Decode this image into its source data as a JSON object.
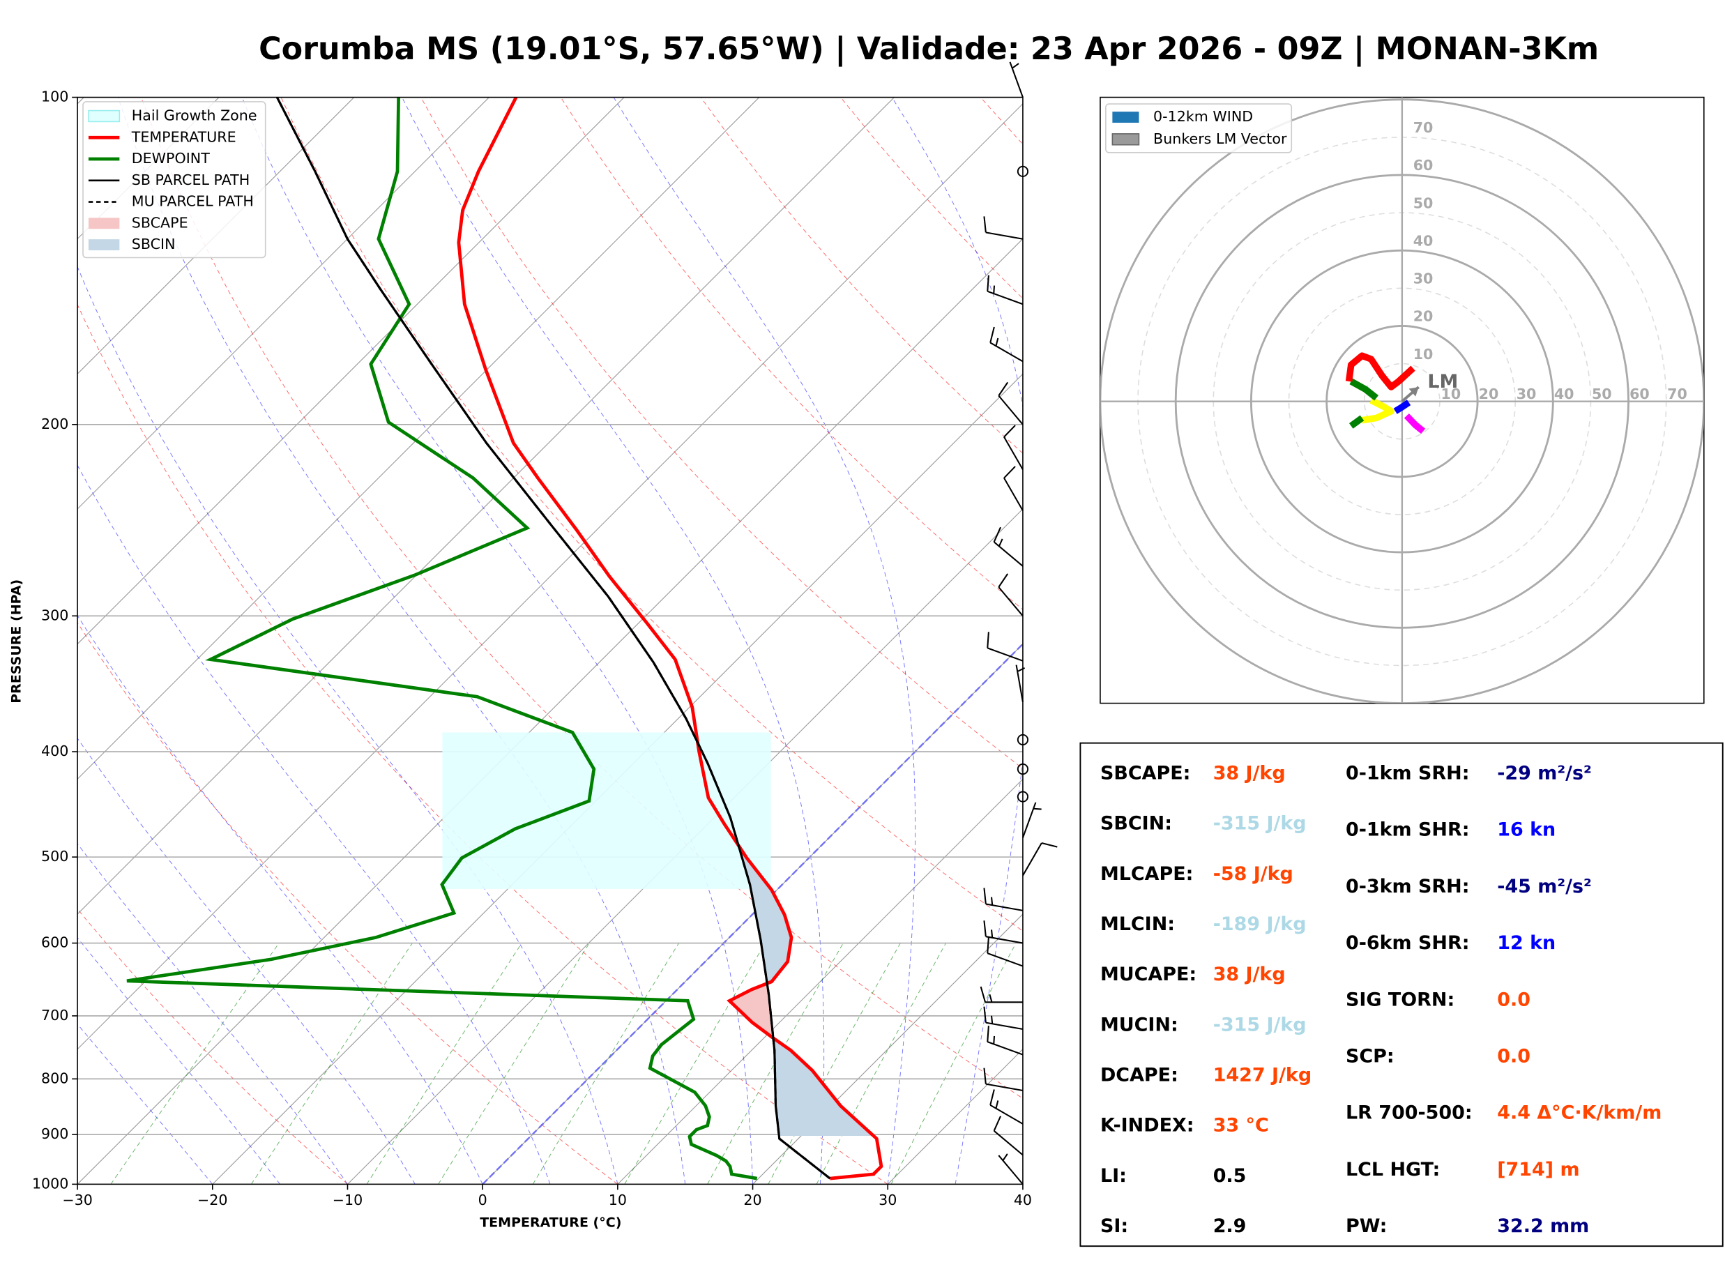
{
  "chart_data": {
    "type": "skewt",
    "title": "Corumba MS (19.01°S, 57.65°W) | Validade: 23 Apr 2026 - 09Z | MONAN-3Km",
    "xlabel": "TEMPERATURE (°C)",
    "ylabel": "PRESSURE (HPA)",
    "xlim": [
      -30,
      40
    ],
    "ylim": [
      1000,
      100
    ],
    "yscale": "log",
    "skew": 45,
    "grid": true,
    "xticks": [
      {
        "value": -30,
        "label": "−30"
      },
      {
        "value": -20,
        "label": "−20"
      },
      {
        "value": -10,
        "label": "−10"
      },
      0,
      10,
      20,
      30,
      40
    ],
    "yticks": [
      100,
      200,
      300,
      400,
      500,
      600,
      700,
      800,
      900,
      1000
    ],
    "legend": "upper left",
    "series": [
      {
        "name": "TEMPERATURE",
        "color": "#ff0000",
        "pressure": [
          988,
          979,
          963,
          908,
          847,
          786,
          753,
          732,
          710,
          678,
          662,
          651,
          624,
          593,
          565,
          536,
          501,
          466,
          441,
          400,
          364,
          329,
          304,
          276,
          250,
          224,
          208,
          178,
          155,
          136,
          127,
          117,
          100
        ],
        "values": [
          25.3,
          28.2,
          28.2,
          25.8,
          20.7,
          16.0,
          12.9,
          10.5,
          8.0,
          4.7,
          5.5,
          6.4,
          6.1,
          4.6,
          2.4,
          -0.4,
          -4.6,
          -8.8,
          -11.9,
          -16.0,
          -19.8,
          -24.6,
          -29.5,
          -35.6,
          -41.5,
          -48.2,
          -52.6,
          -60.1,
          -66.5,
          -71.5,
          -73.6,
          -75.3,
          -78.0
        ]
      },
      {
        "name": "DEWPOINT",
        "color": "#008000",
        "pressure": [
          988,
          979,
          963,
          952,
          941,
          919,
          904,
          891,
          883,
          867,
          847,
          823,
          782,
          762,
          744,
          705,
          678,
          650,
          621,
          593,
          563,
          530,
          501,
          471,
          444,
          415,
          384,
          356,
          329,
          302,
          275,
          249,
          224,
          199,
          176,
          155,
          135,
          117,
          100
        ],
        "values": [
          19.9,
          17.7,
          17.0,
          16.3,
          15.2,
          12.5,
          11.8,
          11.8,
          12.3,
          11.8,
          10.7,
          8.9,
          3.8,
          3.1,
          2.9,
          3.4,
          1.6,
          -41.4,
          -32.3,
          -26.2,
          -22.2,
          -25.2,
          -25.7,
          -23.9,
          -20.5,
          -22.5,
          -26.8,
          -36.5,
          -59.0,
          -55.9,
          -50.1,
          -45.3,
          -53.0,
          -63.4,
          -69.0,
          -70.6,
          -77.7,
          -81.3,
          -86.7
        ]
      },
      {
        "name": "SB PARCEL PATH",
        "color": "#000000",
        "dashed": false,
        "pressure": [
          988,
          908,
          847,
          753,
          670,
          596,
          530,
          460,
          410,
          373,
          331,
          288,
          248,
          208,
          176,
          150,
          135,
          117,
          100
        ],
        "values": [
          25.3,
          18.6,
          15.9,
          11.7,
          7.2,
          2.5,
          -2.4,
          -8.8,
          -14.5,
          -19.4,
          -26.0,
          -34.2,
          -43.6,
          -54.6,
          -64.5,
          -73.9,
          -80.0,
          -87.4,
          -95.7
        ]
      },
      {
        "name": "MU PARCEL PATH",
        "color": "#000000",
        "dashed": true,
        "pressure": [
          988,
          908,
          847,
          753,
          670,
          596,
          530,
          460,
          410,
          373,
          331,
          288,
          248,
          208,
          176,
          150,
          135,
          117,
          100
        ],
        "values": [
          25.3,
          18.6,
          15.9,
          11.7,
          7.2,
          2.5,
          -2.4,
          -8.8,
          -14.5,
          -19.4,
          -26.0,
          -34.2,
          -43.6,
          -54.6,
          -64.5,
          -73.9,
          -80.0,
          -87.4,
          -95.7
        ]
      }
    ],
    "areas": [
      {
        "name": "Hail Growth Zone",
        "color": "#e0ffff",
        "pressure": [
          535,
          384
        ]
      },
      {
        "name": "SBCAPE",
        "color": "#f6c6c6",
        "pressure": [
          902,
          483
        ]
      },
      {
        "name": "SBCIN",
        "color": "#c4d7e6",
        "pressure": [
          902,
          483
        ]
      }
    ],
    "wind": {
      "pressure": [
        100,
        117,
        135,
        155,
        175,
        200,
        220,
        240,
        270,
        300,
        330,
        360,
        390,
        415,
        440,
        480,
        520,
        560,
        600,
        630,
        680,
        720,
        760,
        820,
        880,
        940,
        1000
      ],
      "speed": [
        5,
        0,
        10,
        15,
        15,
        10,
        10,
        10,
        15,
        10,
        10,
        5,
        0,
        0,
        0,
        5,
        10,
        15,
        15,
        10,
        15,
        15,
        15,
        10,
        15,
        10,
        5
      ],
      "direction": [
        340,
        0,
        280,
        290,
        300,
        320,
        330,
        330,
        310,
        320,
        290,
        350,
        0,
        0,
        0,
        20,
        30,
        280,
        280,
        290,
        270,
        280,
        290,
        280,
        300,
        310,
        320
      ]
    },
    "hodograph": {
      "rlim": 80,
      "rticks": [
        10,
        20,
        30,
        40,
        50,
        60,
        70
      ],
      "legend": [
        {
          "name": "0-12km WIND",
          "color": "#1f77b4"
        },
        {
          "name": "Bunkers LM Vector",
          "color": "#9a9a9a"
        }
      ],
      "segments": [
        {
          "color": "#ff00ff",
          "u": [
            1.2,
            3.5,
            5.6
          ],
          "v": [
            -3.8,
            -6.2,
            -7.9
          ]
        },
        {
          "color": "#0000ff",
          "u": [
            -1.8,
            0.0,
            1.8
          ],
          "v": [
            -2.6,
            -1.5,
            -0.3
          ]
        },
        {
          "color": "#ffff00",
          "u": [
            -8.2,
            -4.7,
            -2.9,
            -6.8,
            -10.6
          ],
          "v": [
            0.3,
            -1.5,
            -2.6,
            -4.4,
            -5.0
          ]
        },
        {
          "color": "#008000",
          "u": [
            -10.6,
            -13.5
          ],
          "v": [
            -4.4,
            -6.5
          ]
        },
        {
          "color": "#008000",
          "u": [
            -13.5,
            -9.7,
            -6.8
          ],
          "v": [
            5.3,
            3.2,
            0.9
          ]
        },
        {
          "color": "#ff0000",
          "u": [
            -14.1,
            -13.5,
            -10.6,
            -8.2,
            -5.3,
            -2.9,
            -0.9,
            2.9
          ],
          "v": [
            5.3,
            9.7,
            12.1,
            11.2,
            6.8,
            3.8,
            5.3,
            8.8
          ]
        }
      ],
      "lm_vector": {
        "label": "LM",
        "u": 4.4,
        "v": 3.8
      }
    }
  },
  "stats": {
    "left": [
      {
        "label": "SBCAPE:",
        "value": "38 J/kg",
        "color": "#ff4500"
      },
      {
        "label": "SBCIN:",
        "value": "-315 J/kg",
        "color": "#add8e6"
      },
      {
        "label": "MLCAPE:",
        "value": "-58 J/kg",
        "color": "#ff4500"
      },
      {
        "label": "MLCIN:",
        "value": "-189 J/kg",
        "color": "#add8e6"
      },
      {
        "label": "MUCAPE:",
        "value": "38 J/kg",
        "color": "#ff4500"
      },
      {
        "label": "MUCIN:",
        "value": "-315 J/kg",
        "color": "#add8e6"
      },
      {
        "label": "DCAPE:",
        "value": "1427 J/kg",
        "color": "#ff4500"
      },
      {
        "label": "K-INDEX:",
        "value": "33 °C",
        "color": "#ff4500"
      },
      {
        "label": "LI:",
        "value": "0.5",
        "color": "#000000"
      },
      {
        "label": "SI:",
        "value": "2.9",
        "color": "#000000"
      }
    ],
    "right": [
      {
        "label": "0-1km SRH:",
        "value": "-29 m²/s²",
        "color": "#000080"
      },
      {
        "label": "0-1km SHR:",
        "value": "16 kn",
        "color": "#0000ff"
      },
      {
        "label": "0-3km SRH:",
        "value": "-45 m²/s²",
        "color": "#000080"
      },
      {
        "label": "0-6km SHR:",
        "value": "12 kn",
        "color": "#0000ff"
      },
      {
        "label": "SIG TORN:",
        "value": "0.0",
        "color": "#ff4500"
      },
      {
        "label": "SCP:",
        "value": "0.0",
        "color": "#ff4500"
      },
      {
        "label": "LR 700-500:",
        "value": "4.4 Δ°C·K/km/m",
        "color": "#ff4500"
      },
      {
        "label": "LCL HGT:",
        "value": "[714] m",
        "color": "#ff4500"
      },
      {
        "label": "PW:",
        "value": "32.2 mm",
        "color": "#000080"
      }
    ]
  }
}
